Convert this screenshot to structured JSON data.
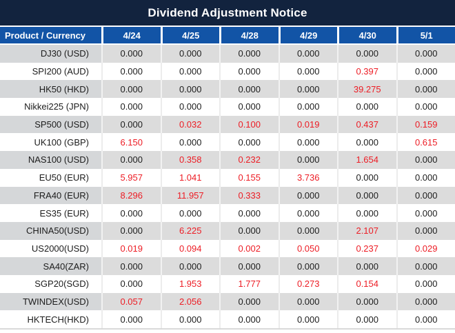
{
  "title": "Dividend Adjustment Notice",
  "colors": {
    "title_bar_navy": "#12233E",
    "header_blue": "#1254A6",
    "negative_red": "#ED1C24",
    "gray_row_product": "#d5d7d9",
    "gray_row_data": "#dcdcdc",
    "text_black": "#1c1c1c"
  },
  "header": {
    "product_col": "Product / Currency",
    "dates": [
      "4/24",
      "4/25",
      "4/28",
      "4/29",
      "4/30",
      "5/1"
    ]
  },
  "rows": [
    {
      "product": "DJ30 (USD)",
      "values": [
        "0.000",
        "0.000",
        "0.000",
        "0.000",
        "0.000",
        "0.000"
      ],
      "red": []
    },
    {
      "product": "SPI200 (AUD)",
      "values": [
        "0.000",
        "0.000",
        "0.000",
        "0.000",
        "0.397",
        "0.000"
      ],
      "red": [
        4
      ]
    },
    {
      "product": "HK50 (HKD)",
      "values": [
        "0.000",
        "0.000",
        "0.000",
        "0.000",
        "39.275",
        "0.000"
      ],
      "red": [
        4
      ]
    },
    {
      "product": "Nikkei225 (JPN)",
      "values": [
        "0.000",
        "0.000",
        "0.000",
        "0.000",
        "0.000",
        "0.000"
      ],
      "red": []
    },
    {
      "product": "SP500 (USD)",
      "values": [
        "0.000",
        "0.032",
        "0.100",
        "0.019",
        "0.437",
        "0.159"
      ],
      "red": [
        1,
        2,
        3,
        4,
        5
      ]
    },
    {
      "product": "UK100 (GBP)",
      "values": [
        "6.150",
        "0.000",
        "0.000",
        "0.000",
        "0.000",
        "0.615"
      ],
      "red": [
        0,
        5
      ]
    },
    {
      "product": "NAS100 (USD)",
      "values": [
        "0.000",
        "0.358",
        "0.232",
        "0.000",
        "1.654",
        "0.000"
      ],
      "red": [
        1,
        2,
        4
      ]
    },
    {
      "product": "EU50 (EUR)",
      "values": [
        "5.957",
        "1.041",
        "0.155",
        "3.736",
        "0.000",
        "0.000"
      ],
      "red": [
        0,
        1,
        2,
        3
      ]
    },
    {
      "product": "FRA40 (EUR)",
      "values": [
        "8.296",
        "11.957",
        "0.333",
        "0.000",
        "0.000",
        "0.000"
      ],
      "red": [
        0,
        1,
        2
      ]
    },
    {
      "product": "ES35 (EUR)",
      "values": [
        "0.000",
        "0.000",
        "0.000",
        "0.000",
        "0.000",
        "0.000"
      ],
      "red": []
    },
    {
      "product": "CHINA50(USD)",
      "values": [
        "0.000",
        "6.225",
        "0.000",
        "0.000",
        "2.107",
        "0.000"
      ],
      "red": [
        1,
        4
      ]
    },
    {
      "product": "US2000(USD)",
      "values": [
        "0.019",
        "0.094",
        "0.002",
        "0.050",
        "0.237",
        "0.029"
      ],
      "red": [
        0,
        1,
        2,
        3,
        4,
        5
      ]
    },
    {
      "product": "SA40(ZAR)",
      "values": [
        "0.000",
        "0.000",
        "0.000",
        "0.000",
        "0.000",
        "0.000"
      ],
      "red": []
    },
    {
      "product": "SGP20(SGD)",
      "values": [
        "0.000",
        "1.953",
        "1.777",
        "0.273",
        "0.154",
        "0.000"
      ],
      "red": [
        1,
        2,
        3,
        4
      ]
    },
    {
      "product": "TWINDEX(USD)",
      "values": [
        "0.057",
        "2.056",
        "0.000",
        "0.000",
        "0.000",
        "0.000"
      ],
      "red": [
        0,
        1
      ]
    },
    {
      "product": "HKTECH(HKD)",
      "values": [
        "0.000",
        "0.000",
        "0.000",
        "0.000",
        "0.000",
        "0.000"
      ],
      "red": []
    }
  ]
}
